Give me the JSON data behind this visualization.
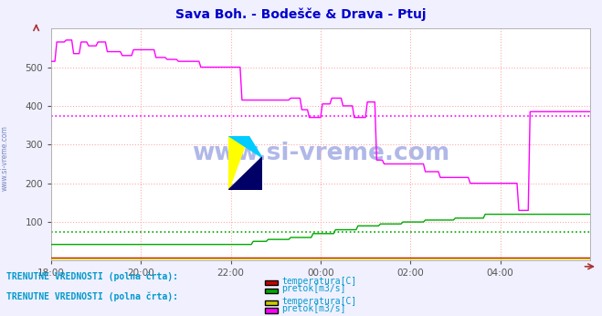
{
  "title": "Sava Boh. - Bodešče & Drava - Ptuj",
  "title_color": "#0000cc",
  "bg_color": "#f0f0ff",
  "plot_bg_color": "#ffffff",
  "grid_color": "#ffaaaa",
  "grid_style": ":",
  "xlim": [
    0,
    288
  ],
  "ylim": [
    0,
    600
  ],
  "yticks": [
    100,
    200,
    300,
    400,
    500
  ],
  "xtick_labels": [
    "18:00",
    "20:00",
    "22:00",
    "00:00",
    "02:00",
    "04:00"
  ],
  "xtick_positions": [
    0,
    48,
    96,
    144,
    192,
    240
  ],
  "tick_color": "#555555",
  "axis_color": "#555555",
  "watermark": "www.si-vreme.com",
  "watermark_color": "#b0b8e8",
  "side_text": "www.si-vreme.com",
  "side_text_color": "#7788bb",
  "drava_pretok_color": "#ff00ff",
  "sava_pretok_color": "#00aa00",
  "sava_temp_color": "#cc0000",
  "drava_temp_color": "#cccc00",
  "avg_line_style": ":",
  "drava_avg_value": 375,
  "sava_pretok_avg_value": 75,
  "legend1_title": "TRENUTNE VREDNOSTI (polna črta):",
  "legend1_label1": "temperatura[C]",
  "legend1_label2": "pretok[m3/s]",
  "legend1_color1": "#cc0000",
  "legend1_color2": "#00aa00",
  "legend2_title": "TRENUTNE VREDNOSTI (polna črta):",
  "legend2_label1": "temperatura[C]",
  "legend2_label2": "pretok[m3/s]",
  "legend2_color1": "#cccc00",
  "legend2_color2": "#ff00ff",
  "legend_text_color": "#0099cc"
}
